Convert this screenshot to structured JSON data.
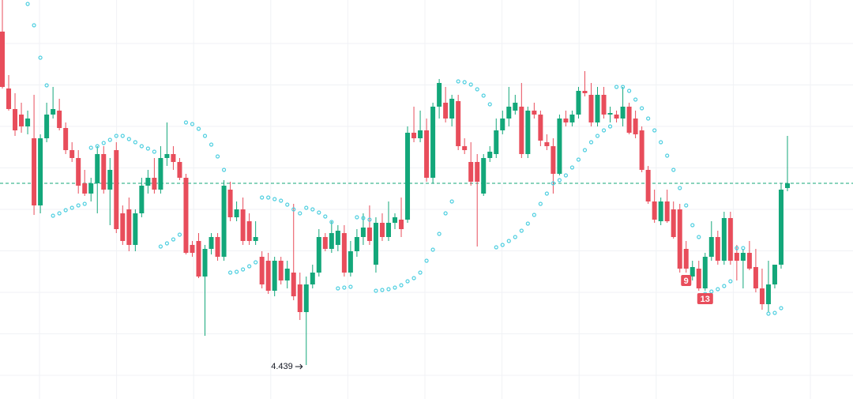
{
  "chart_data": {
    "type": "candlestick",
    "up_color": "#13a77a",
    "down_color": "#e84d5b",
    "sar_color": "#4fcfe0",
    "ylim": [
      4.396,
      4.901
    ],
    "open": [
      4.861,
      4.789,
      4.763,
      4.756,
      4.741,
      4.726,
      4.641,
      4.726,
      4.756,
      4.761,
      4.739,
      4.711,
      4.701,
      4.669,
      4.656,
      4.669,
      4.706,
      4.661,
      4.711,
      4.631,
      4.636,
      4.591,
      4.631,
      4.666,
      4.676,
      4.661,
      4.701,
      4.706,
      4.696,
      4.676,
      4.591,
      4.596,
      4.551,
      4.586,
      4.601,
      4.576,
      4.661,
      4.626,
      4.636,
      4.621,
      4.596,
      4.576,
      4.571,
      4.533,
      4.571,
      4.546,
      4.556,
      4.541,
      4.506,
      4.541,
      4.556,
      4.601,
      4.586,
      4.591,
      4.606,
      4.556,
      4.583,
      4.601,
      4.613,
      4.566,
      4.619,
      4.601,
      4.619,
      4.623,
      4.623,
      4.733,
      4.726,
      4.736,
      4.676,
      4.766,
      4.771,
      4.751,
      4.773,
      4.716,
      4.696,
      4.696,
      4.656,
      4.701,
      4.706,
      4.736,
      4.751,
      4.761,
      4.766,
      4.706,
      4.761,
      4.756,
      4.721,
      4.716,
      4.681,
      4.751,
      4.746,
      4.756,
      4.786,
      4.781,
      4.746,
      4.781,
      4.756,
      4.756,
      4.751,
      4.766,
      4.751,
      4.736,
      4.686,
      4.646,
      4.621,
      4.646,
      4.636,
      4.636,
      4.586,
      4.551,
      4.561,
      4.536,
      4.576,
      4.601,
      4.571,
      4.625,
      4.581,
      4.571,
      4.581,
      4.563,
      4.536,
      4.516,
      4.541,
      4.566,
      4.663
    ],
    "high": [
      4.901,
      4.806,
      4.783,
      4.771,
      4.761,
      4.781,
      4.731,
      4.771,
      4.791,
      4.776,
      4.746,
      4.721,
      4.711,
      4.686,
      4.676,
      4.716,
      4.716,
      4.701,
      4.721,
      4.641,
      4.651,
      4.636,
      4.676,
      4.686,
      4.701,
      4.716,
      4.746,
      4.716,
      4.701,
      4.681,
      4.596,
      4.606,
      4.591,
      4.606,
      4.606,
      4.673,
      4.671,
      4.646,
      4.651,
      4.631,
      4.621,
      4.583,
      4.581,
      4.576,
      4.576,
      4.571,
      4.643,
      4.556,
      4.551,
      4.566,
      4.611,
      4.606,
      4.621,
      4.616,
      4.616,
      4.596,
      4.611,
      4.631,
      4.641,
      4.626,
      4.631,
      4.646,
      4.631,
      4.651,
      4.741,
      4.766,
      4.761,
      4.751,
      4.771,
      4.801,
      4.791,
      4.781,
      4.781,
      4.726,
      4.721,
      4.706,
      4.706,
      4.716,
      4.751,
      4.761,
      4.791,
      4.781,
      4.796,
      4.766,
      4.771,
      4.761,
      4.731,
      4.726,
      4.756,
      4.761,
      4.761,
      4.791,
      4.811,
      4.796,
      4.791,
      4.791,
      4.766,
      4.761,
      4.791,
      4.771,
      4.761,
      4.741,
      4.691,
      4.661,
      4.651,
      4.661,
      4.646,
      4.643,
      4.596,
      4.571,
      4.571,
      4.581,
      4.621,
      4.609,
      4.633,
      4.633,
      4.591,
      4.586,
      4.596,
      4.586,
      4.561,
      4.571,
      4.566,
      4.669,
      4.729
    ],
    "low": [
      4.789,
      4.761,
      4.729,
      4.733,
      4.731,
      4.629,
      4.631,
      4.721,
      4.751,
      4.736,
      4.706,
      4.696,
      4.656,
      4.653,
      4.646,
      4.631,
      4.656,
      4.616,
      4.606,
      4.591,
      4.583,
      4.583,
      4.626,
      4.656,
      4.656,
      4.656,
      4.691,
      4.686,
      4.673,
      4.579,
      4.576,
      4.549,
      4.476,
      4.579,
      4.571,
      4.571,
      4.621,
      4.621,
      4.591,
      4.591,
      4.591,
      4.536,
      4.529,
      4.526,
      4.541,
      4.536,
      4.521,
      4.496,
      4.439,
      4.536,
      4.551,
      4.583,
      4.581,
      4.583,
      4.551,
      4.551,
      4.576,
      4.591,
      4.591,
      4.556,
      4.596,
      4.596,
      4.611,
      4.601,
      4.619,
      4.721,
      4.721,
      4.671,
      4.669,
      4.751,
      4.746,
      4.741,
      4.711,
      4.706,
      4.666,
      4.589,
      4.653,
      4.696,
      4.701,
      4.731,
      4.741,
      4.756,
      4.701,
      4.701,
      4.751,
      4.716,
      4.711,
      4.656,
      4.679,
      4.741,
      4.741,
      4.751,
      4.779,
      4.741,
      4.741,
      4.751,
      4.746,
      4.746,
      4.741,
      4.731,
      4.726,
      4.683,
      4.643,
      4.619,
      4.616,
      4.619,
      4.599,
      4.556,
      4.556,
      4.546,
      4.533,
      4.533,
      4.571,
      4.566,
      4.566,
      4.566,
      4.546,
      4.536,
      4.559,
      4.531,
      4.509,
      4.506,
      4.536,
      4.561,
      4.659
    ],
    "close": [
      4.791,
      4.763,
      4.736,
      4.741,
      4.751,
      4.641,
      4.726,
      4.756,
      4.763,
      4.739,
      4.711,
      4.701,
      4.666,
      4.656,
      4.669,
      4.706,
      4.661,
      4.686,
      4.611,
      4.596,
      4.591,
      4.631,
      4.666,
      4.676,
      4.661,
      4.701,
      4.706,
      4.696,
      4.676,
      4.581,
      4.581,
      4.551,
      4.586,
      4.601,
      4.576,
      4.666,
      4.626,
      4.636,
      4.596,
      4.596,
      4.601,
      4.541,
      4.533,
      4.571,
      4.546,
      4.561,
      4.526,
      4.506,
      4.541,
      4.556,
      4.601,
      4.586,
      4.606,
      4.609,
      4.556,
      4.583,
      4.601,
      4.613,
      4.596,
      4.619,
      4.601,
      4.619,
      4.626,
      4.611,
      4.733,
      4.726,
      4.736,
      4.676,
      4.766,
      4.796,
      4.751,
      4.776,
      4.716,
      4.711,
      4.671,
      4.671,
      4.701,
      4.709,
      4.736,
      4.751,
      4.766,
      4.771,
      4.706,
      4.761,
      4.756,
      4.723,
      4.716,
      4.681,
      4.751,
      4.746,
      4.756,
      4.786,
      4.783,
      4.746,
      4.781,
      4.756,
      4.758,
      4.751,
      4.766,
      4.733,
      4.731,
      4.686,
      4.646,
      4.623,
      4.646,
      4.621,
      4.601,
      4.561,
      4.561,
      4.563,
      4.536,
      4.576,
      4.601,
      4.571,
      4.625,
      4.571,
      4.571,
      4.581,
      4.561,
      4.536,
      4.516,
      4.541,
      4.566,
      4.661,
      4.669
    ],
    "sar": [
      null,
      null,
      null,
      null,
      4.896,
      4.869,
      4.828,
      4.793,
      4.628,
      4.631,
      4.635,
      4.638,
      4.641,
      4.643,
      4.714,
      4.716,
      4.72,
      4.724,
      4.729,
      4.729,
      4.725,
      4.721,
      4.716,
      4.713,
      4.709,
      4.589,
      4.593,
      4.598,
      4.604,
      4.746,
      4.744,
      4.738,
      4.729,
      4.718,
      4.703,
      4.686,
      4.556,
      4.557,
      4.56,
      4.564,
      4.569,
      4.651,
      4.651,
      4.649,
      4.647,
      4.642,
      4.636,
      4.631,
      4.638,
      4.636,
      4.632,
      4.627,
      4.62,
      4.536,
      4.537,
      4.538,
      4.626,
      4.625,
      4.623,
      4.533,
      4.534,
      4.535,
      4.537,
      4.54,
      4.545,
      4.549,
      4.556,
      4.571,
      4.585,
      4.605,
      4.631,
      4.646,
      4.798,
      4.797,
      4.794,
      4.788,
      4.78,
      4.769,
      4.588,
      4.591,
      4.596,
      4.601,
      4.609,
      4.618,
      4.629,
      4.643,
      4.656,
      4.669,
      4.673,
      4.679,
      4.689,
      4.699,
      4.711,
      4.721,
      4.729,
      4.736,
      4.741,
      4.791,
      4.791,
      4.786,
      4.775,
      4.764,
      4.751,
      4.736,
      4.721,
      4.704,
      4.686,
      4.663,
      4.641,
      4.616,
      4.601,
      4.529,
      4.532,
      4.535,
      4.539,
      4.545,
      4.587,
      4.587,
      null,
      null,
      null,
      4.504,
      4.505,
      4.511,
      null
    ],
    "low_label": "4.439",
    "markers": [
      {
        "label": "9",
        "candle": 108
      },
      {
        "label": "13",
        "candle": 111
      }
    ]
  }
}
